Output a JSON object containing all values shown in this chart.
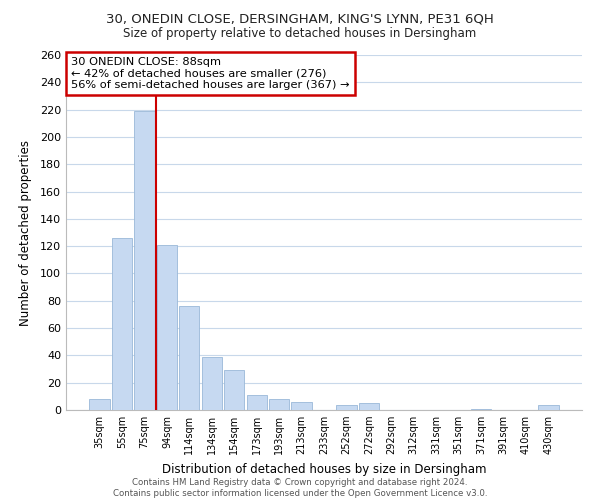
{
  "title1": "30, ONEDIN CLOSE, DERSINGHAM, KING'S LYNN, PE31 6QH",
  "title2": "Size of property relative to detached houses in Dersingham",
  "xlabel": "Distribution of detached houses by size in Dersingham",
  "ylabel": "Number of detached properties",
  "bar_labels": [
    "35sqm",
    "55sqm",
    "75sqm",
    "94sqm",
    "114sqm",
    "134sqm",
    "154sqm",
    "173sqm",
    "193sqm",
    "213sqm",
    "233sqm",
    "252sqm",
    "272sqm",
    "292sqm",
    "312sqm",
    "331sqm",
    "351sqm",
    "371sqm",
    "391sqm",
    "410sqm",
    "430sqm"
  ],
  "bar_values": [
    8,
    126,
    219,
    121,
    76,
    39,
    29,
    11,
    8,
    6,
    0,
    4,
    5,
    0,
    0,
    0,
    0,
    1,
    0,
    0,
    4
  ],
  "bar_color": "#c6d9f1",
  "bar_edge_color": "#9ab8d8",
  "vline_color": "#cc0000",
  "annotation_title": "30 ONEDIN CLOSE: 88sqm",
  "annotation_line1": "← 42% of detached houses are smaller (276)",
  "annotation_line2": "56% of semi-detached houses are larger (367) →",
  "annotation_box_color": "#ffffff",
  "annotation_box_edgecolor": "#cc0000",
  "ylim": [
    0,
    260
  ],
  "yticks": [
    0,
    20,
    40,
    60,
    80,
    100,
    120,
    140,
    160,
    180,
    200,
    220,
    240,
    260
  ],
  "footer1": "Contains HM Land Registry data © Crown copyright and database right 2024.",
  "footer2": "Contains public sector information licensed under the Open Government Licence v3.0.",
  "bg_color": "#ffffff",
  "grid_color": "#c8d8ea"
}
